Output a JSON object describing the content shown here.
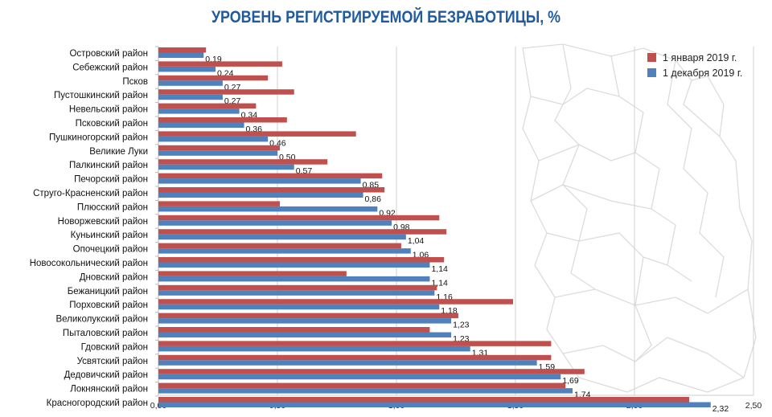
{
  "chart_data": {
    "type": "bar",
    "orientation": "horizontal",
    "title": "УРОВЕНЬ РЕГИСТРИРУЕМОЙ БЕЗРАБОТИЦЫ, %",
    "categories": [
      "Островский район",
      "Себежский район",
      "Псков",
      "Пустошкинский район",
      "Невельский район",
      "Псковский район",
      "Пушкиногорский район",
      "Великие Луки",
      "Палкинский район",
      "Печорский район",
      "Струго-Красненский район",
      "Плюсский район",
      "Новоржевский район",
      "Куньинский район",
      "Опочецкий район",
      "Новосокольнический район",
      "Дновский район",
      "Бежаницкий район",
      "Порховский район",
      "Великолукский район",
      "Пыталовский район",
      "Гдовский район",
      "Усвятский район",
      "Дедовичский район",
      "Локнянский район",
      "Красногородский район"
    ],
    "series": [
      {
        "name": "1 января 2019 г.",
        "color": "#c0504d",
        "values": [
          0.2,
          0.52,
          0.46,
          0.57,
          0.41,
          0.54,
          0.83,
          0.51,
          0.71,
          0.94,
          0.95,
          0.51,
          1.18,
          1.21,
          1.02,
          1.2,
          0.79,
          1.17,
          1.49,
          1.26,
          1.14,
          1.65,
          1.65,
          1.79,
          1.71,
          2.23
        ]
      },
      {
        "name": "1 декабря 2019 г.",
        "color": "#4f81bd",
        "values": [
          0.19,
          0.24,
          0.27,
          0.27,
          0.34,
          0.36,
          0.46,
          0.5,
          0.57,
          0.85,
          0.86,
          0.92,
          0.98,
          1.04,
          1.06,
          1.14,
          1.14,
          1.16,
          1.18,
          1.23,
          1.23,
          1.31,
          1.59,
          1.69,
          1.74,
          2.32
        ],
        "labels": [
          "0,19",
          "0,24",
          "0,27",
          "0,27",
          "0,34",
          "0,36",
          "0,46",
          "0,50",
          "0,57",
          "0,85",
          "0,86",
          "0,92",
          "0,98",
          "1,04",
          "1,06",
          "1,14",
          "1,14",
          "1,16",
          "1,18",
          "1,23",
          "1,23",
          "1,31",
          "1,59",
          "1,69",
          "1,74",
          "2,32"
        ]
      }
    ],
    "xlim": [
      0,
      2.5
    ],
    "xticks": [
      "0,00",
      "0,50",
      "1,00",
      "1,50",
      "2,00",
      "2,50"
    ],
    "grid": true,
    "legend": "top-right",
    "background": "map outline of Pskov region"
  }
}
